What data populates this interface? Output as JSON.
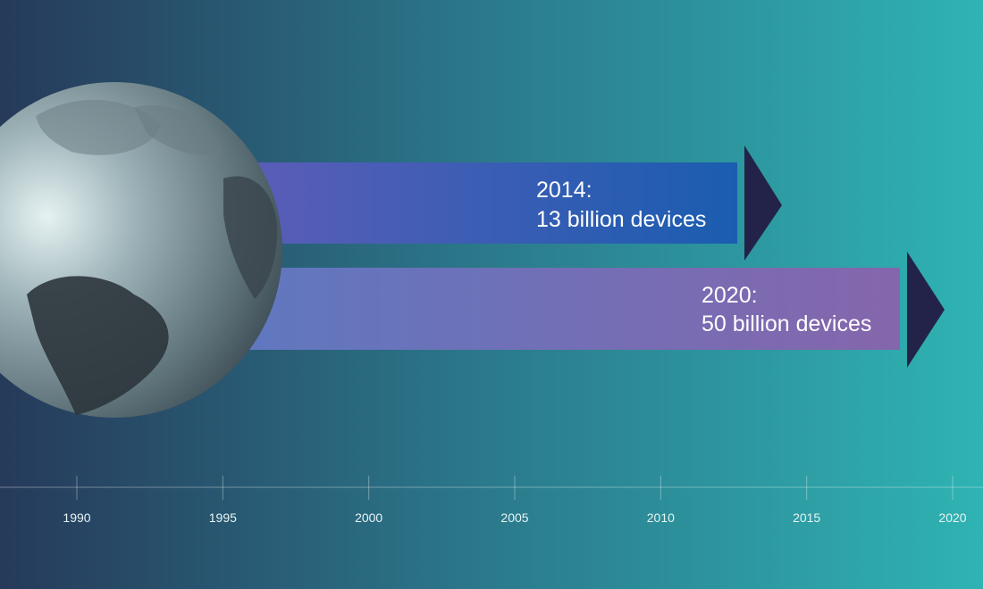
{
  "bars": [
    {
      "year_label": "2014:",
      "text": "13 billion devices"
    },
    {
      "year_label": "2020:",
      "text": "50 billion devices"
    }
  ],
  "timeline": {
    "ticks": [
      "1990",
      "1995",
      "2000",
      "2005",
      "2010",
      "2015",
      "2020"
    ]
  }
}
